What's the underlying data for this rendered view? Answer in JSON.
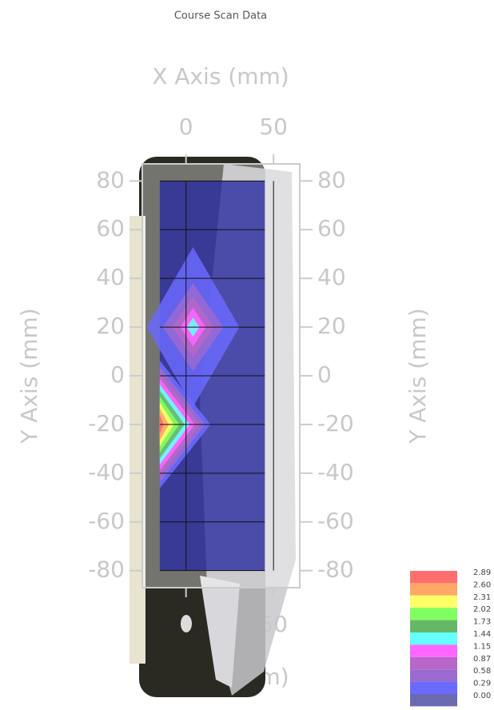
{
  "chart_data": {
    "type": "contour",
    "title": "Course Scan Data",
    "x_label": "X Axis (mm)",
    "y_label": "Y Axis (mm)",
    "xlim": [
      -25,
      65
    ],
    "ylim": [
      -87,
      87
    ],
    "xticks": [
      0,
      50
    ],
    "yticks": [
      -80,
      -60,
      -40,
      -20,
      0,
      20,
      40,
      60,
      80
    ],
    "levels": [
      2.89,
      {
        "value": 2.6,
        "label": "2.60"
      },
      2.31,
      2.02,
      1.73,
      1.44,
      1.15,
      0.87,
      0.58,
      0.29,
      {
        "value": 0,
        "label": "0.00"
      }
    ],
    "level_colors": [
      "#ff6e6e",
      "#ffa866",
      "#ffff66",
      "#80ff60",
      "#66b866",
      "#66ffff",
      "#ff66ff",
      "#b866c8",
      "#9a6ad0",
      "#6a6aff",
      "#6a6ab0"
    ],
    "scan_color": "#2a2aa0"
  }
}
